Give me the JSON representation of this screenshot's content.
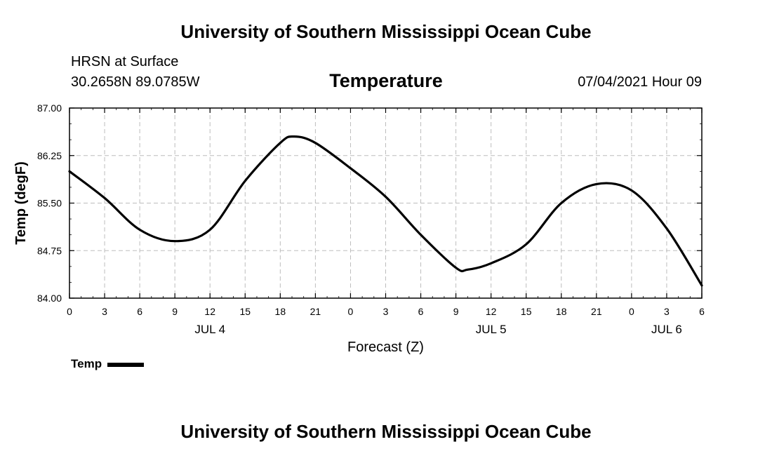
{
  "header": {
    "title_top": "University of Southern Mississippi Ocean Cube",
    "station": "HRSN at Surface",
    "coords": "30.2658N  89.0785W",
    "variable": "Temperature",
    "datetime": "07/04/2021 Hour 09"
  },
  "footer": {
    "title_bottom": "University of Southern Mississippi Ocean Cube"
  },
  "legend": {
    "label": "Temp",
    "color": "#000000"
  },
  "chart_data": {
    "type": "line",
    "title": "Temperature",
    "xlabel": "Forecast (Z)",
    "ylabel": "Temp (degF)",
    "ylim": [
      84.0,
      87.0
    ],
    "xlim": [
      0,
      54
    ],
    "yticks": [
      "84.00",
      "84.75",
      "85.50",
      "86.25",
      "87.00"
    ],
    "yminor_step": 0.25,
    "xticks": [
      "0",
      "3",
      "6",
      "9",
      "12",
      "15",
      "18",
      "21",
      "0",
      "3",
      "6",
      "9",
      "12",
      "15",
      "18",
      "21",
      "0",
      "3",
      "6"
    ],
    "xminor_step": 1,
    "date_labels": [
      {
        "label": "JUL 4",
        "x": 12
      },
      {
        "label": "JUL 5",
        "x": 36
      },
      {
        "label": "JUL 6",
        "x": 51
      }
    ],
    "grid": true,
    "series": [
      {
        "name": "Temp",
        "color": "#000000",
        "x": [
          0,
          3,
          6,
          9,
          12,
          15,
          18,
          19.2,
          21,
          24,
          27,
          30,
          33,
          34,
          36,
          39,
          42,
          45,
          48,
          51,
          54
        ],
        "values": [
          86.0,
          85.58,
          85.08,
          84.9,
          85.08,
          85.85,
          86.45,
          86.55,
          86.45,
          86.05,
          85.6,
          85.0,
          84.48,
          84.45,
          84.55,
          84.85,
          85.5,
          85.8,
          85.7,
          85.1,
          84.2
        ]
      }
    ]
  }
}
